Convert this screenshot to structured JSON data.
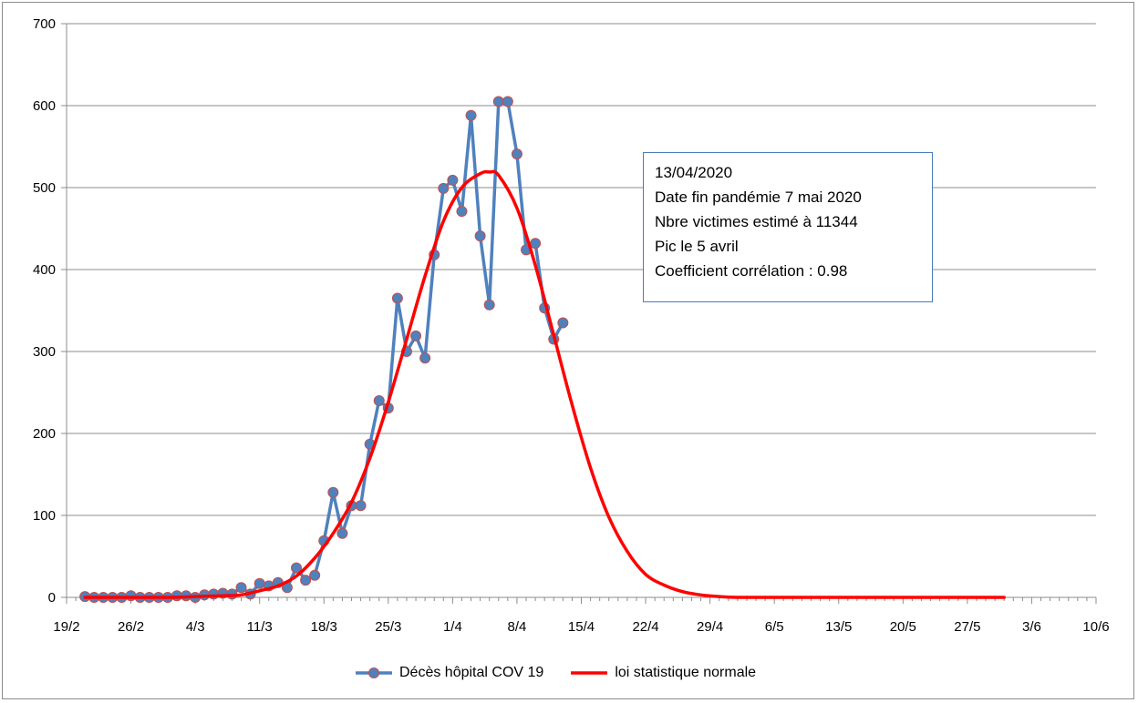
{
  "chart_data": {
    "type": "line",
    "title": "",
    "xlabel": "",
    "ylabel": "",
    "x_tick_labels": [
      "19/2",
      "26/2",
      "4/3",
      "11/3",
      "18/3",
      "25/3",
      "1/4",
      "8/4",
      "15/4",
      "22/4",
      "29/4",
      "6/5",
      "13/5",
      "20/5",
      "27/5",
      "3/6",
      "10/6"
    ],
    "y_tick_labels": [
      "0",
      "100",
      "200",
      "300",
      "400",
      "500",
      "600",
      "700"
    ],
    "ylim": [
      0,
      700
    ],
    "x_range": [
      "19/2",
      "10/6"
    ],
    "grid": "horizontal",
    "legend_position": "bottom",
    "series": [
      {
        "name": "Décès hôpital COV 19",
        "color": "#4f81bd",
        "marker": "circle",
        "x": [
          "21/2",
          "22/2",
          "23/2",
          "24/2",
          "25/2",
          "26/2",
          "27/2",
          "28/2",
          "29/2",
          "1/3",
          "2/3",
          "3/3",
          "4/3",
          "5/3",
          "6/3",
          "7/3",
          "8/3",
          "9/3",
          "10/3",
          "11/3",
          "12/3",
          "13/3",
          "14/3",
          "15/3",
          "16/3",
          "17/3",
          "18/3",
          "19/3",
          "20/3",
          "21/3",
          "22/3",
          "23/3",
          "24/3",
          "25/3",
          "26/3",
          "27/3",
          "28/3",
          "29/3",
          "30/3",
          "31/3",
          "1/4",
          "2/4",
          "3/4",
          "4/4",
          "5/4",
          "6/4",
          "7/4",
          "8/4",
          "9/4",
          "10/4",
          "11/4",
          "12/4",
          "13/4"
        ],
        "values": [
          1,
          0,
          0,
          0,
          0,
          2,
          0,
          0,
          0,
          0,
          2,
          2,
          0,
          3,
          4,
          5,
          4,
          12,
          4,
          17,
          14,
          18,
          12,
          36,
          21,
          27,
          69,
          128,
          78,
          112,
          112,
          187,
          240,
          231,
          365,
          300,
          319,
          292,
          418,
          499,
          509,
          471,
          588,
          441,
          357,
          605,
          605,
          541,
          424,
          432,
          353,
          315,
          335
        ]
      },
      {
        "name": "loi statistique normale",
        "color": "#ff0000",
        "marker": "none",
        "x": [
          "21/2",
          "26/2",
          "1/3",
          "4/3",
          "7/3",
          "9/3",
          "11/3",
          "13/3",
          "15/3",
          "17/3",
          "19/3",
          "21/3",
          "23/3",
          "25/3",
          "27/3",
          "29/3",
          "31/3",
          "2/4",
          "4/4",
          "5/4",
          "6/4",
          "8/4",
          "10/4",
          "12/4",
          "14/4",
          "16/4",
          "18/4",
          "20/4",
          "22/4",
          "24/4",
          "26/4",
          "28/4",
          "30/4",
          "2/5",
          "5/5",
          "7/5",
          "10/5",
          "20/5",
          "31/5"
        ],
        "values": [
          0,
          0,
          0,
          1,
          2,
          3,
          8,
          14,
          26,
          48,
          78,
          116,
          170,
          238,
          315,
          392,
          459,
          500,
          517,
          519,
          515,
          475,
          405,
          320,
          235,
          158,
          98,
          56,
          28,
          15,
          7,
          3,
          1,
          0,
          0,
          0,
          0,
          0,
          0
        ]
      }
    ]
  },
  "annotation": {
    "lines": [
      "13/04/2020",
      "Date fin pandémie 7 mai 2020",
      "Nbre victimes estimé à  11344",
      "Pic le 5 avril",
      "Coefficient corrélation : 0.98"
    ],
    "border_color": "#4a7ebb"
  },
  "legend": {
    "items": [
      "Décès hôpital COV 19",
      "loi statistique normale"
    ]
  }
}
